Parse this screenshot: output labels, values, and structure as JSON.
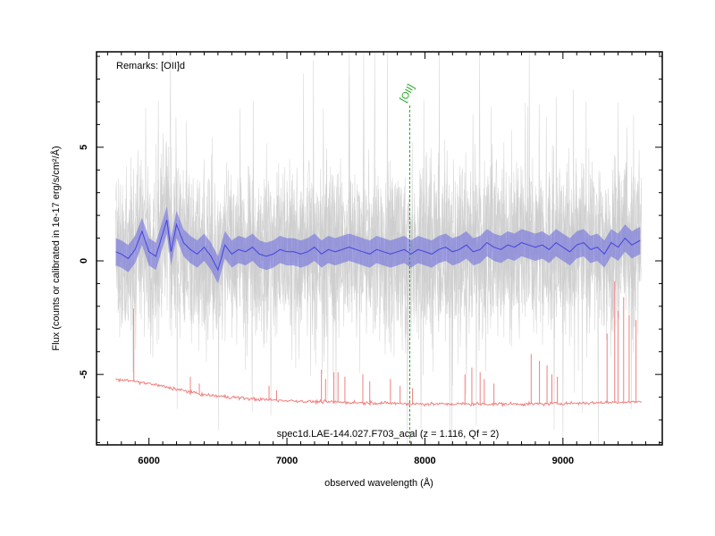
{
  "chart_data": {
    "type": "line",
    "title": "spec1d.LAE-144.027.F703_acal (z = 1.116, Qf = 2)",
    "remarks": "Remarks: [OII]d",
    "xlabel": "observed wavelength (Å)",
    "ylabel": "Flux (counts or calibrated in 1e-17 erg/s/cm²/Å)",
    "xlim": [
      5620,
      9720
    ],
    "ylim": [
      -8.1,
      9.2
    ],
    "xticks": [
      6000,
      7000,
      8000,
      9000
    ],
    "yticks": [
      -5,
      0,
      5
    ],
    "x_range_data": [
      5760,
      9570
    ],
    "grid": false,
    "annotations": [
      {
        "label": "[OII]",
        "x": 7890,
        "color": "#22aa22",
        "style": "dashed"
      }
    ],
    "series": [
      {
        "color": "#cccccc",
        "style": "individual exposures (noisy, grey)",
        "approx_range": [
          -7.5,
          9.0
        ]
      },
      {
        "color": "#4444dd",
        "style": "combined spectrum with shaded error band",
        "x": [
          5760,
          5800,
          5850,
          5900,
          5950,
          6000,
          6050,
          6100,
          6130,
          6160,
          6200,
          6250,
          6300,
          6350,
          6400,
          6450,
          6500,
          6550,
          6600,
          6650,
          6700,
          6750,
          6800,
          6850,
          6900,
          6950,
          7000,
          7050,
          7100,
          7150,
          7200,
          7250,
          7300,
          7350,
          7400,
          7450,
          7500,
          7550,
          7600,
          7650,
          7700,
          7750,
          7800,
          7850,
          7900,
          7950,
          8000,
          8050,
          8100,
          8150,
          8200,
          8250,
          8300,
          8350,
          8400,
          8450,
          8500,
          8550,
          8600,
          8650,
          8700,
          8750,
          8800,
          8850,
          8900,
          8950,
          9000,
          9050,
          9100,
          9150,
          9200,
          9250,
          9300,
          9350,
          9400,
          9450,
          9500,
          9560
        ],
        "y": [
          0.4,
          0.3,
          0.1,
          0.5,
          1.3,
          0.4,
          0.2,
          1.2,
          1.8,
          0.4,
          1.6,
          0.8,
          0.5,
          0.3,
          0.6,
          0.2,
          -0.4,
          0.7,
          0.3,
          0.5,
          0.4,
          0.6,
          0.3,
          0.2,
          0.3,
          0.5,
          0.4,
          0.4,
          0.3,
          0.4,
          0.6,
          0.3,
          0.5,
          0.4,
          0.5,
          0.6,
          0.5,
          0.4,
          0.3,
          0.5,
          0.4,
          0.3,
          0.4,
          0.5,
          0.3,
          0.5,
          0.4,
          0.3,
          0.5,
          0.6,
          0.4,
          0.5,
          0.7,
          0.4,
          0.5,
          0.8,
          0.6,
          0.5,
          0.7,
          0.6,
          0.8,
          0.7,
          0.6,
          0.7,
          0.5,
          0.8,
          0.6,
          0.4,
          0.7,
          0.8,
          0.5,
          0.6,
          0.3,
          0.8,
          0.6,
          1.0,
          0.7,
          0.9
        ],
        "err": 0.6
      },
      {
        "color": "#f08080",
        "style": "sky / noise spectrum with emission spikes",
        "baseline_x": [
          5760,
          6000,
          6400,
          6800,
          7200,
          7600,
          8000,
          8400,
          8800,
          9200,
          9570
        ],
        "baseline_y": [
          -5.2,
          -5.4,
          -5.9,
          -6.1,
          -6.2,
          -6.25,
          -6.3,
          -6.3,
          -6.3,
          -6.25,
          -6.2
        ],
        "spikes": [
          {
            "x": 5890,
            "y": -2.1
          },
          {
            "x": 6300,
            "y": -5.1
          },
          {
            "x": 6365,
            "y": -5.4
          },
          {
            "x": 6870,
            "y": -5.5
          },
          {
            "x": 6925,
            "y": -5.7
          },
          {
            "x": 7250,
            "y": -4.8
          },
          {
            "x": 7280,
            "y": -5.2
          },
          {
            "x": 7340,
            "y": -4.9
          },
          {
            "x": 7370,
            "y": -4.9
          },
          {
            "x": 7420,
            "y": -5.1
          },
          {
            "x": 7550,
            "y": -5.0
          },
          {
            "x": 7600,
            "y": -5.3
          },
          {
            "x": 7750,
            "y": -5.2
          },
          {
            "x": 7820,
            "y": -5.5
          },
          {
            "x": 7910,
            "y": -5.6
          },
          {
            "x": 8290,
            "y": -5.0
          },
          {
            "x": 8340,
            "y": -4.7
          },
          {
            "x": 8400,
            "y": -4.9
          },
          {
            "x": 8430,
            "y": -5.2
          },
          {
            "x": 8500,
            "y": -5.4
          },
          {
            "x": 8770,
            "y": -4.1
          },
          {
            "x": 8830,
            "y": -4.4
          },
          {
            "x": 8885,
            "y": -4.6
          },
          {
            "x": 8920,
            "y": -5.0
          },
          {
            "x": 8960,
            "y": -5.1
          },
          {
            "x": 9320,
            "y": -3.2
          },
          {
            "x": 9375,
            "y": -0.9
          },
          {
            "x": 9400,
            "y": -2.2
          },
          {
            "x": 9440,
            "y": -1.6
          },
          {
            "x": 9480,
            "y": -2.4
          },
          {
            "x": 9530,
            "y": -2.6
          }
        ]
      }
    ]
  }
}
